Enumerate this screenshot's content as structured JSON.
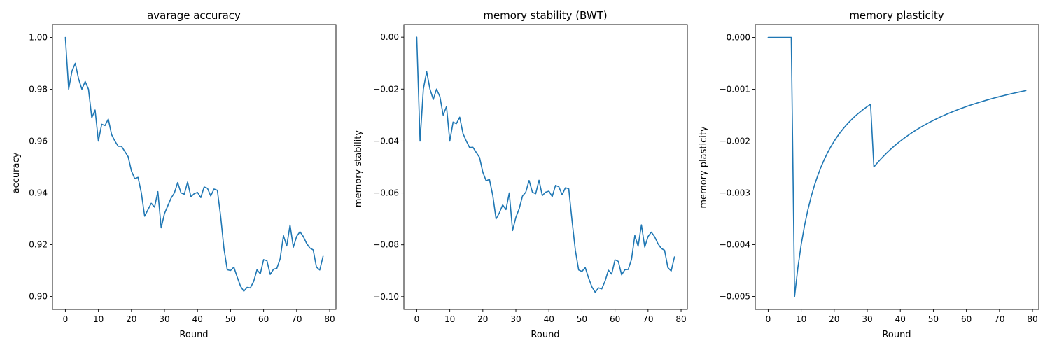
{
  "chart_data": [
    {
      "type": "line",
      "title": "avarage accuracy",
      "xlabel": "Round",
      "ylabel": "accuracy",
      "xlim": [
        -3.9,
        81.9
      ],
      "ylim": [
        0.895,
        1.005
      ],
      "xticks": [
        0,
        10,
        20,
        30,
        40,
        50,
        60,
        70,
        80
      ],
      "xtick_labels": [
        "0",
        "10",
        "20",
        "30",
        "40",
        "50",
        "60",
        "70",
        "80"
      ],
      "yticks": [
        0.9,
        0.92,
        0.94,
        0.96,
        0.98,
        1.0
      ],
      "ytick_labels": [
        "0.90",
        "0.92",
        "0.94",
        "0.96",
        "0.98",
        "1.00"
      ],
      "color": "#1f77b4",
      "x": [
        0,
        1,
        2,
        3,
        4,
        5,
        6,
        7,
        8,
        9,
        10,
        11,
        12,
        13,
        14,
        15,
        16,
        17,
        18,
        19,
        20,
        21,
        22,
        23,
        24,
        25,
        26,
        27,
        28,
        29,
        30,
        31,
        32,
        33,
        34,
        35,
        36,
        37,
        38,
        39,
        40,
        41,
        42,
        43,
        44,
        45,
        46,
        47,
        48,
        49,
        50,
        51,
        52,
        53,
        54,
        55,
        56,
        57,
        58,
        59,
        60,
        61,
        62,
        63,
        64,
        65,
        66,
        67,
        68,
        69,
        70,
        71,
        72,
        73,
        74,
        75,
        76,
        77,
        78
      ],
      "y": [
        1.0,
        0.98,
        0.987,
        0.99,
        0.984,
        0.98,
        0.983,
        0.98,
        0.969,
        0.972,
        0.96,
        0.9665,
        0.966,
        0.9685,
        0.9625,
        0.96,
        0.958,
        0.958,
        0.956,
        0.954,
        0.9485,
        0.9455,
        0.946,
        0.94,
        0.931,
        0.9335,
        0.936,
        0.9345,
        0.9405,
        0.9265,
        0.932,
        0.935,
        0.938,
        0.94,
        0.944,
        0.94,
        0.9395,
        0.9442,
        0.9385,
        0.9397,
        0.9402,
        0.9382,
        0.9423,
        0.9418,
        0.9388,
        0.9415,
        0.941,
        0.931,
        0.9185,
        0.9103,
        0.91,
        0.9113,
        0.9075,
        0.904,
        0.902,
        0.9035,
        0.9033,
        0.9058,
        0.9103,
        0.9087,
        0.9142,
        0.9138,
        0.9085,
        0.9105,
        0.9108,
        0.9145,
        0.9235,
        0.9195,
        0.9276,
        0.919,
        0.9232,
        0.925,
        0.9232,
        0.9205,
        0.9187,
        0.918,
        0.9113,
        0.9102,
        0.9155
      ]
    },
    {
      "type": "line",
      "title": "memory stability (BWT)",
      "xlabel": "Round",
      "ylabel": "memory stability",
      "xlim": [
        -3.9,
        81.9
      ],
      "ylim": [
        -0.1049,
        0.0049
      ],
      "xticks": [
        0,
        10,
        20,
        30,
        40,
        50,
        60,
        70,
        80
      ],
      "xtick_labels": [
        "0",
        "10",
        "20",
        "30",
        "40",
        "50",
        "60",
        "70",
        "80"
      ],
      "yticks": [
        -0.1,
        -0.08,
        -0.06,
        -0.04,
        -0.02,
        0.0
      ],
      "ytick_labels": [
        "−0.10",
        "−0.08",
        "−0.06",
        "−0.04",
        "−0.02",
        "0.00"
      ],
      "color": "#1f77b4",
      "x": [
        0,
        1,
        2,
        3,
        4,
        5,
        6,
        7,
        8,
        9,
        10,
        11,
        12,
        13,
        14,
        15,
        16,
        17,
        18,
        19,
        20,
        21,
        22,
        23,
        24,
        25,
        26,
        27,
        28,
        29,
        30,
        31,
        32,
        33,
        34,
        35,
        36,
        37,
        38,
        39,
        40,
        41,
        42,
        43,
        44,
        45,
        46,
        47,
        48,
        49,
        50,
        51,
        52,
        53,
        54,
        55,
        56,
        57,
        58,
        59,
        60,
        61,
        62,
        63,
        64,
        65,
        66,
        67,
        68,
        69,
        70,
        71,
        72,
        73,
        74,
        75,
        76,
        77,
        78
      ],
      "y": [
        0.0,
        -0.04,
        -0.02,
        -0.0133,
        -0.02,
        -0.024,
        -0.02,
        -0.0229,
        -0.03,
        -0.0267,
        -0.04,
        -0.0327,
        -0.0333,
        -0.0308,
        -0.0371,
        -0.04,
        -0.0425,
        -0.0424,
        -0.0444,
        -0.0463,
        -0.052,
        -0.0553,
        -0.0548,
        -0.0609,
        -0.07,
        -0.0677,
        -0.0646,
        -0.0664,
        -0.06,
        -0.0745,
        -0.0694,
        -0.0661,
        -0.0612,
        -0.0597,
        -0.0552,
        -0.0597,
        -0.0603,
        -0.0551,
        -0.061,
        -0.0597,
        -0.0593,
        -0.0614,
        -0.0571,
        -0.0576,
        -0.0607,
        -0.058,
        -0.0584,
        -0.0707,
        -0.0821,
        -0.0897,
        -0.0903,
        -0.0888,
        -0.0928,
        -0.0962,
        -0.0983,
        -0.0966,
        -0.097,
        -0.094,
        -0.0898,
        -0.0913,
        -0.0858,
        -0.0864,
        -0.0916,
        -0.0896,
        -0.0895,
        -0.0856,
        -0.0764,
        -0.0806,
        -0.0723,
        -0.0809,
        -0.0768,
        -0.0751,
        -0.0769,
        -0.0796,
        -0.0814,
        -0.0821,
        -0.0888,
        -0.0901,
        -0.0847
      ]
    },
    {
      "type": "line",
      "title": "memory plasticity",
      "xlabel": "Round",
      "ylabel": "memory plasticity",
      "xlim": [
        -3.9,
        81.9
      ],
      "ylim": [
        -0.00525,
        0.00025
      ],
      "xticks": [
        0,
        10,
        20,
        30,
        40,
        50,
        60,
        70,
        80
      ],
      "xtick_labels": [
        "0",
        "10",
        "20",
        "30",
        "40",
        "50",
        "60",
        "70",
        "80"
      ],
      "yticks": [
        -0.005,
        -0.004,
        -0.003,
        -0.002,
        -0.001,
        0.0
      ],
      "ytick_labels": [
        "−0.005",
        "−0.004",
        "−0.003",
        "−0.002",
        "−0.001",
        "0.000"
      ],
      "color": "#1f77b4",
      "x": [
        0,
        1,
        2,
        3,
        4,
        5,
        6,
        7,
        8,
        9,
        10,
        11,
        12,
        13,
        14,
        15,
        16,
        17,
        18,
        19,
        20,
        21,
        22,
        23,
        24,
        25,
        26,
        27,
        28,
        29,
        30,
        31,
        32,
        33,
        34,
        35,
        36,
        37,
        38,
        39,
        40,
        41,
        42,
        43,
        44,
        45,
        46,
        47,
        48,
        49,
        50,
        51,
        52,
        53,
        54,
        55,
        56,
        57,
        58,
        59,
        60,
        61,
        62,
        63,
        64,
        65,
        66,
        67,
        68,
        69,
        70,
        71,
        72,
        73,
        74,
        75,
        76,
        77,
        78
      ],
      "y": [
        0.0,
        0.0,
        0.0,
        0.0,
        0.0,
        0.0,
        0.0,
        0.0,
        -0.005,
        -0.004444,
        -0.004,
        -0.003636,
        -0.003333,
        -0.003077,
        -0.002857,
        -0.002667,
        -0.0025,
        -0.002353,
        -0.002222,
        -0.002105,
        -0.002,
        -0.001905,
        -0.001818,
        -0.001739,
        -0.001667,
        -0.0016,
        -0.001538,
        -0.001481,
        -0.001429,
        -0.001379,
        -0.001333,
        -0.00129,
        -0.0025,
        -0.002424,
        -0.002353,
        -0.002286,
        -0.002222,
        -0.002162,
        -0.002105,
        -0.002051,
        -0.002,
        -0.001951,
        -0.001905,
        -0.00186,
        -0.001818,
        -0.001778,
        -0.001739,
        -0.001702,
        -0.001667,
        -0.001633,
        -0.0016,
        -0.001569,
        -0.001538,
        -0.001509,
        -0.001481,
        -0.001455,
        -0.001429,
        -0.001404,
        -0.001379,
        -0.001356,
        -0.001333,
        -0.001311,
        -0.00129,
        -0.00127,
        -0.00125,
        -0.001231,
        -0.001212,
        -0.001194,
        -0.001176,
        -0.001159,
        -0.001143,
        -0.001127,
        -0.001111,
        -0.001096,
        -0.001081,
        -0.001067,
        -0.001053,
        -0.001039,
        -0.001026
      ]
    }
  ]
}
